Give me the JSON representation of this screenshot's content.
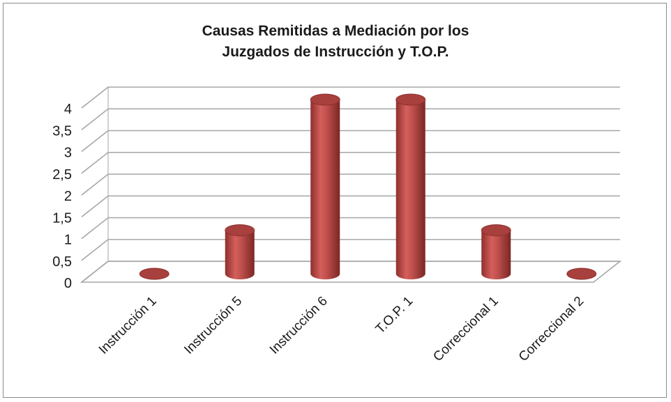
{
  "chart_data": {
    "type": "bar",
    "title_lines": [
      "Causas Remitidas a Mediación por los",
      "Juzgados de Instrucción y T.O.P."
    ],
    "categories": [
      "Instrucción 1",
      "Instrucción 5",
      "Instrucción 6",
      "T.O.P. 1",
      "Correccional 1",
      "Correccional 2"
    ],
    "values": [
      0,
      1,
      4,
      4,
      1,
      0
    ],
    "y_ticks": [
      "0",
      "0,5",
      "1",
      "1,5",
      "2",
      "2,5",
      "3",
      "3,5",
      "4"
    ],
    "ylim": [
      0,
      4
    ],
    "grid": true,
    "style": "3d-cylinder",
    "colors": {
      "bar": "#c0504d",
      "bar_dark": "#7f2a27",
      "bar_light": "#e08a88",
      "grid": "#a6a6a6",
      "frame": "#8c8c8c"
    }
  }
}
